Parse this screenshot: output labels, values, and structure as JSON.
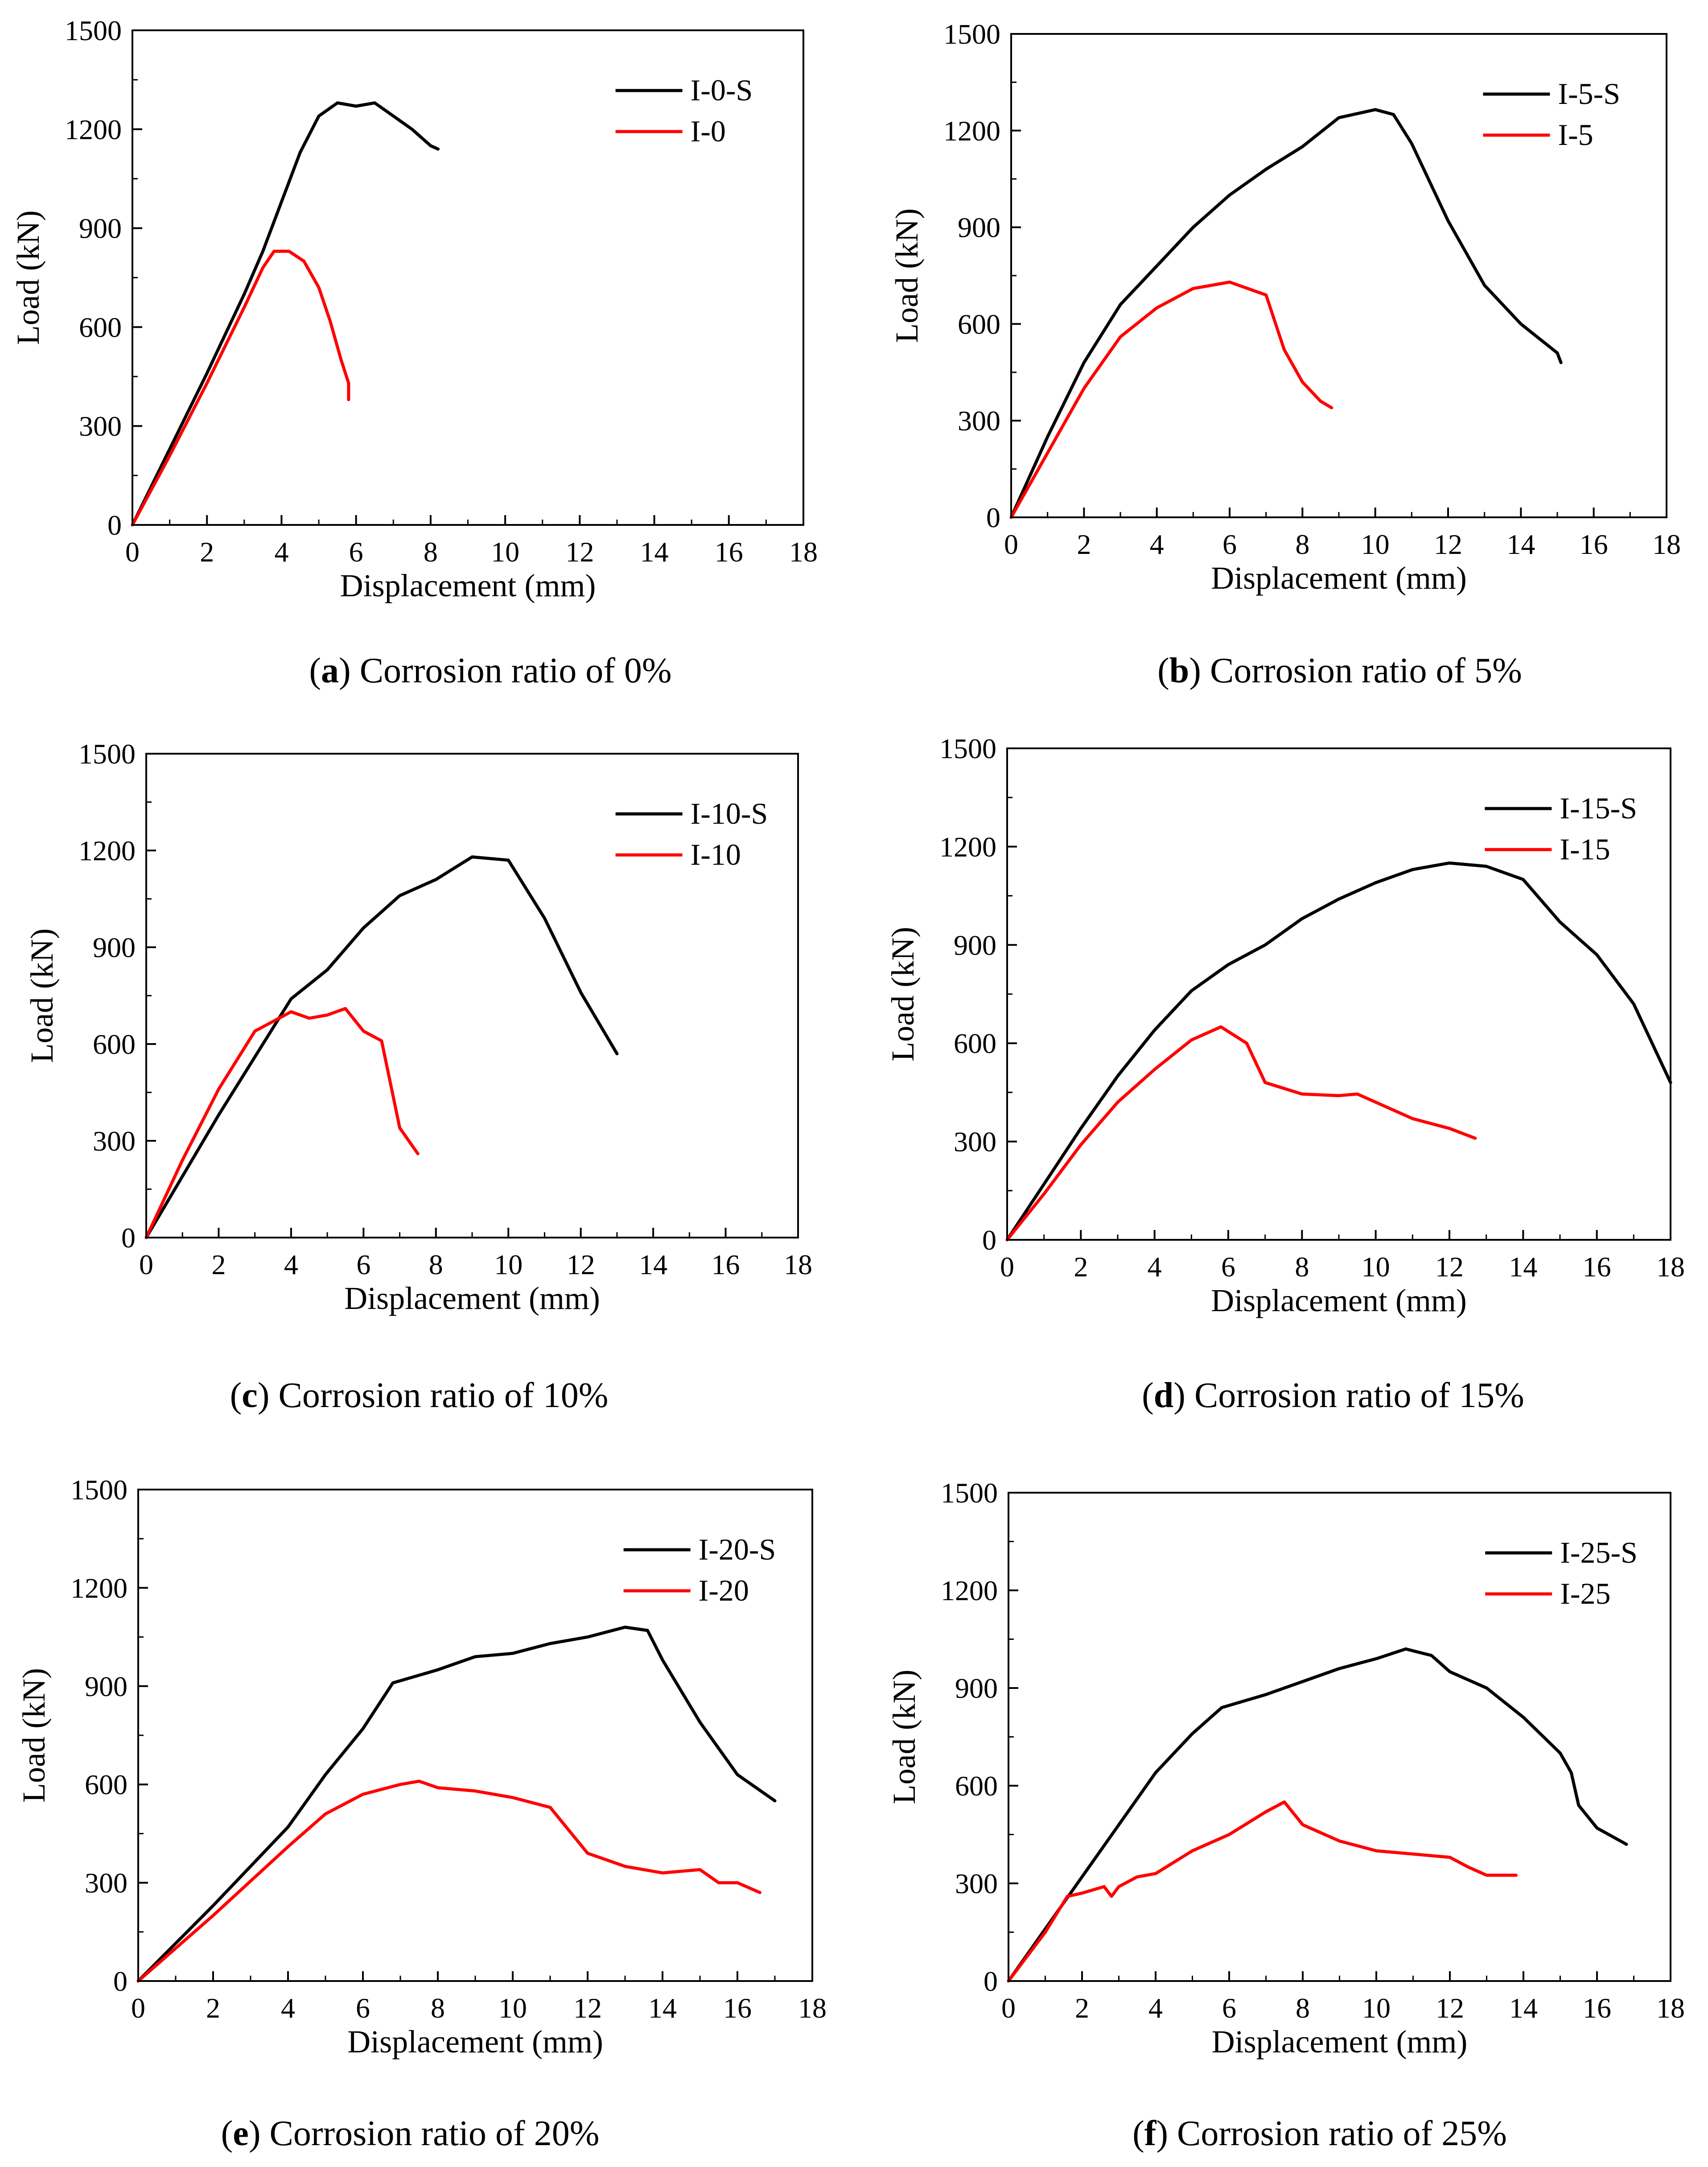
{
  "figure": {
    "axes_color": "#000000",
    "series_colors": {
      "S": "#000000",
      "base": "#ff0000"
    }
  },
  "chart_data": [
    {
      "type": "line",
      "panel": "a",
      "caption": {
        "letter": "a",
        "text": "Corrosion ratio of 0%"
      },
      "xlabel": "Displacement (mm)",
      "ylabel": "Load (kN)",
      "xlim": [
        0,
        18
      ],
      "ylim": [
        0,
        1500
      ],
      "xticks": [
        "0",
        "2",
        "4",
        "6",
        "8",
        "10",
        "12",
        "14",
        "16",
        "18"
      ],
      "yticks": [
        "0",
        "300",
        "600",
        "900",
        "1200",
        "1500"
      ],
      "legend_position": "top-right",
      "series": [
        {
          "name": "I-0-S",
          "color": "#000000",
          "x": [
            0,
            1,
            2,
            3,
            3.5,
            4,
            4.5,
            5,
            5.5,
            6,
            6.5,
            7,
            7.5,
            8,
            8.2
          ],
          "y": [
            0,
            230,
            460,
            700,
            830,
            980,
            1130,
            1240,
            1280,
            1270,
            1280,
            1240,
            1200,
            1150,
            1140
          ]
        },
        {
          "name": "I-0",
          "color": "#ff0000",
          "x": [
            0,
            1,
            2,
            3,
            3.5,
            3.8,
            4.2,
            4.6,
            5,
            5.3,
            5.6,
            5.8,
            5.8
          ],
          "y": [
            0,
            210,
            430,
            660,
            780,
            830,
            830,
            800,
            720,
            620,
            500,
            430,
            380
          ]
        }
      ]
    },
    {
      "type": "line",
      "panel": "b",
      "caption": {
        "letter": "b",
        "text": "Corrosion ratio of 5%"
      },
      "xlabel": "Displacement (mm)",
      "ylabel": "Load (kN)",
      "xlim": [
        0,
        18
      ],
      "ylim": [
        0,
        1500
      ],
      "xticks": [
        "0",
        "2",
        "4",
        "6",
        "8",
        "10",
        "12",
        "14",
        "16",
        "18"
      ],
      "yticks": [
        "0",
        "300",
        "600",
        "900",
        "1200",
        "1500"
      ],
      "legend_position": "top-right",
      "series": [
        {
          "name": "I-5-S",
          "color": "#000000",
          "x": [
            0,
            1,
            2,
            3,
            4,
            5,
            6,
            7,
            8,
            9,
            10,
            10.5,
            11,
            12,
            13,
            14,
            15,
            15.1
          ],
          "y": [
            0,
            250,
            480,
            660,
            780,
            900,
            1000,
            1080,
            1150,
            1240,
            1265,
            1250,
            1160,
            920,
            720,
            600,
            510,
            480
          ]
        },
        {
          "name": "I-5",
          "color": "#ff0000",
          "x": [
            0,
            1,
            2,
            3,
            4,
            5,
            6,
            7,
            7.5,
            8,
            8.5,
            8.8
          ],
          "y": [
            0,
            200,
            400,
            560,
            650,
            710,
            730,
            690,
            520,
            420,
            360,
            340
          ]
        }
      ]
    },
    {
      "type": "line",
      "panel": "c",
      "caption": {
        "letter": "c",
        "text": "Corrosion ratio of 10%"
      },
      "xlabel": "Displacement (mm)",
      "ylabel": "Load (kN)",
      "xlim": [
        0,
        18
      ],
      "ylim": [
        0,
        1500
      ],
      "xticks": [
        "0",
        "2",
        "4",
        "6",
        "8",
        "10",
        "12",
        "14",
        "16",
        "18"
      ],
      "yticks": [
        "0",
        "300",
        "600",
        "900",
        "1200",
        "1500"
      ],
      "legend_position": "top-right",
      "series": [
        {
          "name": "I-10-S",
          "color": "#000000",
          "x": [
            0,
            1,
            2,
            3,
            4,
            5,
            6,
            7,
            8,
            9,
            10,
            11,
            12,
            13
          ],
          "y": [
            0,
            190,
            380,
            560,
            740,
            830,
            960,
            1060,
            1110,
            1180,
            1170,
            990,
            760,
            570
          ]
        },
        {
          "name": "I-10",
          "color": "#ff0000",
          "x": [
            0,
            1,
            2,
            3,
            4,
            4.5,
            5,
            5.5,
            6,
            6.5,
            7,
            7.5
          ],
          "y": [
            0,
            240,
            460,
            640,
            700,
            680,
            690,
            710,
            640,
            610,
            340,
            260
          ]
        }
      ]
    },
    {
      "type": "line",
      "panel": "d",
      "caption": {
        "letter": "d",
        "text": "Corrosion ratio of 15%"
      },
      "xlabel": "Displacement (mm)",
      "ylabel": "Load (kN)",
      "xlim": [
        0,
        18
      ],
      "ylim": [
        0,
        1500
      ],
      "xticks": [
        "0",
        "2",
        "4",
        "6",
        "8",
        "10",
        "12",
        "14",
        "16",
        "18"
      ],
      "yticks": [
        "0",
        "300",
        "600",
        "900",
        "1200",
        "1500"
      ],
      "legend_position": "top-right",
      "series": [
        {
          "name": "I-15-S",
          "color": "#000000",
          "x": [
            0,
            1,
            2,
            3,
            4,
            5,
            6,
            7,
            8,
            9,
            10,
            11,
            12,
            13,
            14,
            15,
            16,
            17,
            18
          ],
          "y": [
            0,
            170,
            340,
            500,
            640,
            760,
            840,
            900,
            980,
            1040,
            1090,
            1130,
            1150,
            1140,
            1100,
            970,
            870,
            720,
            480
          ]
        },
        {
          "name": "I-15",
          "color": "#ff0000",
          "x": [
            0,
            1,
            2,
            3,
            4,
            5,
            5.8,
            6.5,
            7,
            8,
            9,
            9.5,
            10,
            11,
            12,
            12.7
          ],
          "y": [
            0,
            140,
            290,
            420,
            520,
            610,
            650,
            600,
            480,
            445,
            440,
            445,
            420,
            370,
            340,
            310
          ]
        }
      ]
    },
    {
      "type": "line",
      "panel": "e",
      "caption": {
        "letter": "e",
        "text": "Corrosion ratio of 20%"
      },
      "xlabel": "Displacement (mm)",
      "ylabel": "Load (kN)",
      "xlim": [
        0,
        18
      ],
      "ylim": [
        0,
        1500
      ],
      "xticks": [
        "0",
        "2",
        "4",
        "6",
        "8",
        "10",
        "12",
        "14",
        "16",
        "18"
      ],
      "yticks": [
        "0",
        "300",
        "600",
        "900",
        "1200",
        "1500"
      ],
      "legend_position": "top-right",
      "series": [
        {
          "name": "I-20-S",
          "color": "#000000",
          "x": [
            0,
            2,
            4,
            5,
            6,
            6.8,
            8,
            9,
            10,
            11,
            12,
            13,
            13.6,
            14,
            15,
            16,
            17
          ],
          "y": [
            0,
            230,
            470,
            630,
            770,
            910,
            950,
            990,
            1000,
            1030,
            1050,
            1080,
            1070,
            980,
            790,
            630,
            550
          ]
        },
        {
          "name": "I-20",
          "color": "#ff0000",
          "x": [
            0,
            2,
            4,
            5,
            6,
            7,
            7.5,
            8,
            9,
            10,
            11,
            11.5,
            12,
            13,
            14,
            15,
            15.5,
            16,
            16.6
          ],
          "y": [
            0,
            200,
            410,
            510,
            570,
            600,
            610,
            590,
            580,
            560,
            530,
            460,
            390,
            350,
            330,
            340,
            300,
            300,
            270
          ]
        }
      ]
    },
    {
      "type": "line",
      "panel": "f",
      "caption": {
        "letter": "f",
        "text": "Corrosion ratio of 25%"
      },
      "xlabel": "Displacement (mm)",
      "ylabel": "Load (kN)",
      "xlim": [
        0,
        18
      ],
      "ylim": [
        0,
        1500
      ],
      "xticks": [
        "0",
        "2",
        "4",
        "6",
        "8",
        "10",
        "12",
        "14",
        "16",
        "18"
      ],
      "yticks": [
        "0",
        "300",
        "600",
        "900",
        "1200",
        "1500"
      ],
      "legend_position": "top-right",
      "series": [
        {
          "name": "I-25-S",
          "color": "#000000",
          "x": [
            0,
            1,
            2,
            3,
            4,
            5,
            5.8,
            7,
            8,
            9,
            10,
            10.8,
            11.5,
            12,
            13,
            14,
            15,
            15.3,
            15.5,
            16,
            16.8
          ],
          "y": [
            0,
            160,
            320,
            480,
            640,
            760,
            840,
            880,
            920,
            960,
            990,
            1020,
            1000,
            950,
            900,
            810,
            700,
            640,
            540,
            470,
            420
          ]
        },
        {
          "name": "I-25",
          "color": "#ff0000",
          "x": [
            0,
            1,
            1.6,
            2,
            2.6,
            2.8,
            3,
            3.5,
            4,
            5,
            6,
            7,
            7.5,
            8,
            9,
            10,
            11,
            12,
            12.5,
            13,
            13.8
          ],
          "y": [
            0,
            150,
            260,
            270,
            290,
            260,
            290,
            320,
            330,
            400,
            450,
            520,
            550,
            480,
            430,
            400,
            390,
            380,
            350,
            325,
            325
          ]
        }
      ]
    }
  ]
}
